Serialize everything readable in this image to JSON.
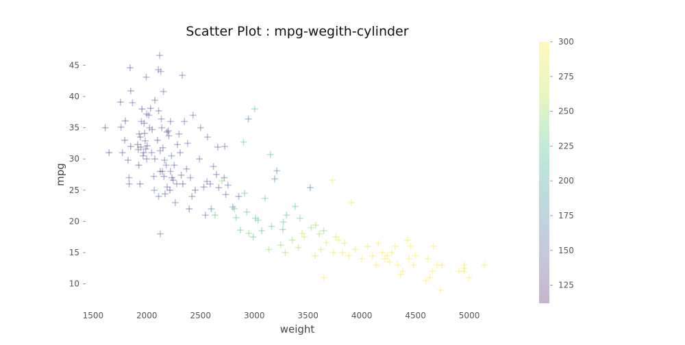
{
  "chart_data": {
    "type": "scatter",
    "title": "Scatter Plot : mpg-wegith-cylinder",
    "xlabel": "weight",
    "ylabel": "mpg",
    "xlim": [
      1450,
      5350
    ],
    "ylim": [
      7,
      48
    ],
    "x_ticks": [
      1500,
      2000,
      2500,
      3000,
      3500,
      4000,
      4500,
      5000
    ],
    "y_ticks": [
      10,
      15,
      20,
      25,
      30,
      35,
      40,
      45
    ],
    "marker": "+",
    "grid": false,
    "colorbar": {
      "range": [
        112,
        300
      ],
      "ticks": [
        125,
        150,
        175,
        200,
        225,
        250,
        275,
        300
      ],
      "colormap": "viridis",
      "placement": "right"
    },
    "points": [
      [
        1613,
        35,
        126
      ],
      [
        1649,
        31,
        130
      ],
      [
        1755,
        39.1,
        135
      ],
      [
        1760,
        35.1,
        137
      ],
      [
        1773,
        31,
        139
      ],
      [
        1795,
        33,
        130
      ],
      [
        1800,
        36.1,
        128
      ],
      [
        1825,
        29.8,
        144
      ],
      [
        1835,
        27,
        152
      ],
      [
        1836,
        26,
        140
      ],
      [
        1845,
        44.6,
        140
      ],
      [
        1850,
        32,
        133
      ],
      [
        1850,
        40.9,
        143
      ],
      [
        1867,
        39,
        148
      ],
      [
        1915,
        32.3,
        137
      ],
      [
        1920,
        31.5,
        142
      ],
      [
        1925,
        29,
        126
      ],
      [
        1930,
        34,
        135
      ],
      [
        1937,
        26,
        126
      ],
      [
        1940,
        33.5,
        145
      ],
      [
        1945,
        31.9,
        138
      ],
      [
        1950,
        36,
        152
      ],
      [
        1955,
        38,
        125
      ],
      [
        1965,
        30.5,
        150
      ],
      [
        1970,
        31,
        143
      ],
      [
        1975,
        35.7,
        132
      ],
      [
        1980,
        34.1,
        140
      ],
      [
        1985,
        32.9,
        155
      ],
      [
        1990,
        31.6,
        142
      ],
      [
        1995,
        43.1,
        147
      ],
      [
        2000,
        30,
        140
      ],
      [
        2000,
        37.2,
        138
      ],
      [
        2003,
        32.1,
        136
      ],
      [
        2019,
        37,
        150
      ],
      [
        2025,
        35,
        150
      ],
      [
        2035,
        38.1,
        130
      ],
      [
        2045,
        31,
        148
      ],
      [
        2050,
        34.7,
        138
      ],
      [
        2065,
        27.2,
        146
      ],
      [
        2070,
        25,
        158
      ],
      [
        2074,
        30,
        142
      ],
      [
        2075,
        39.4,
        140
      ],
      [
        2100,
        33,
        135
      ],
      [
        2108,
        44.3,
        148
      ],
      [
        2110,
        37.7,
        140
      ],
      [
        2110,
        24,
        150
      ],
      [
        2120,
        46.6,
        155
      ],
      [
        2124,
        31.3,
        150
      ],
      [
        2125,
        28,
        132
      ],
      [
        2125,
        18,
        155
      ],
      [
        2130,
        44,
        152
      ],
      [
        2135,
        36.4,
        155
      ],
      [
        2140,
        35,
        146
      ],
      [
        2145,
        28,
        143
      ],
      [
        2150,
        31.8,
        143
      ],
      [
        2155,
        40.8,
        150
      ],
      [
        2160,
        27.2,
        137
      ],
      [
        2165,
        29.8,
        158
      ],
      [
        2170,
        24.4,
        145
      ],
      [
        2180,
        29,
        148
      ],
      [
        2188,
        34.3,
        135
      ],
      [
        2190,
        25.5,
        150
      ],
      [
        2200,
        34.5,
        132
      ],
      [
        2205,
        33.7,
        138
      ],
      [
        2215,
        25,
        128
      ],
      [
        2220,
        36,
        148
      ],
      [
        2220,
        28,
        148
      ],
      [
        2230,
        30.5,
        150
      ],
      [
        2234,
        27,
        130
      ],
      [
        2245,
        26.6,
        140
      ],
      [
        2255,
        29,
        146
      ],
      [
        2265,
        23,
        152
      ],
      [
        2278,
        26,
        150
      ],
      [
        2285,
        32.3,
        148
      ],
      [
        2300,
        34,
        144
      ],
      [
        2310,
        31,
        145
      ],
      [
        2320,
        27.4,
        140
      ],
      [
        2330,
        43.4,
        148
      ],
      [
        2335,
        26,
        128
      ],
      [
        2350,
        36,
        145
      ],
      [
        2370,
        28.4,
        150
      ],
      [
        2380,
        32.5,
        155
      ],
      [
        2395,
        22,
        130
      ],
      [
        2405,
        27,
        152
      ],
      [
        2420,
        24,
        152
      ],
      [
        2430,
        37,
        150
      ],
      [
        2450,
        25,
        130
      ],
      [
        2490,
        30,
        145
      ],
      [
        2500,
        35,
        150
      ],
      [
        2530,
        25.5,
        150
      ],
      [
        2545,
        21,
        155
      ],
      [
        2560,
        26.4,
        155
      ],
      [
        2565,
        33.5,
        150
      ],
      [
        2590,
        26,
        148
      ],
      [
        2600,
        22,
        155
      ],
      [
        2620,
        28.8,
        150
      ],
      [
        2635,
        21,
        225
      ],
      [
        2648,
        27.5,
        148
      ],
      [
        2660,
        31.9,
        145
      ],
      [
        2670,
        25.4,
        145
      ],
      [
        2700,
        26.5,
        245
      ],
      [
        2720,
        27,
        150
      ],
      [
        2725,
        32,
        150
      ],
      [
        2735,
        24.3,
        150
      ],
      [
        2755,
        25.8,
        155
      ],
      [
        2800,
        22.3,
        160
      ],
      [
        2815,
        22,
        225
      ],
      [
        2830,
        20.6,
        225
      ],
      [
        2855,
        24,
        150
      ],
      [
        2870,
        18.6,
        230
      ],
      [
        2900,
        32.7,
        225
      ],
      [
        2910,
        24.5,
        225
      ],
      [
        2930,
        21.5,
        225
      ],
      [
        2945,
        36.4,
        165
      ],
      [
        2950,
        18.1,
        240
      ],
      [
        2990,
        17.5,
        225
      ],
      [
        3003,
        38,
        225
      ],
      [
        3012,
        20.5,
        225
      ],
      [
        3035,
        20.2,
        225
      ],
      [
        3070,
        18.5,
        225
      ],
      [
        3100,
        23.7,
        230
      ],
      [
        3135,
        15.5,
        250
      ],
      [
        3150,
        30.7,
        225
      ],
      [
        3160,
        19.2,
        225
      ],
      [
        3190,
        26.8,
        165
      ],
      [
        3210,
        28.1,
        165
      ],
      [
        3245,
        16.2,
        250
      ],
      [
        3265,
        18.7,
        225
      ],
      [
        3270,
        19.9,
        225
      ],
      [
        3288,
        15,
        250
      ],
      [
        3300,
        21,
        225
      ],
      [
        3353,
        17,
        250
      ],
      [
        3380,
        22.4,
        225
      ],
      [
        3410,
        15.8,
        255
      ],
      [
        3425,
        20.5,
        230
      ],
      [
        3445,
        18.1,
        270
      ],
      [
        3465,
        17.5,
        270
      ],
      [
        3520,
        25.4,
        165
      ],
      [
        3530,
        19,
        250
      ],
      [
        3565,
        14.5,
        270
      ],
      [
        3570,
        19.4,
        250
      ],
      [
        3605,
        18,
        255
      ],
      [
        3620,
        15.5,
        280
      ],
      [
        3645,
        18.5,
        240
      ],
      [
        3650,
        11,
        300
      ],
      [
        3670,
        16.6,
        280
      ],
      [
        3725,
        26.6,
        290
      ],
      [
        3735,
        15,
        290
      ],
      [
        3760,
        17.5,
        280
      ],
      [
        3785,
        17,
        290
      ],
      [
        3820,
        15,
        290
      ],
      [
        3840,
        16.5,
        285
      ],
      [
        3880,
        14.5,
        295
      ],
      [
        3900,
        23,
        290
      ],
      [
        3940,
        15.5,
        290
      ],
      [
        4000,
        14,
        300
      ],
      [
        4054,
        16,
        290
      ],
      [
        4100,
        14.5,
        300
      ],
      [
        4135,
        13,
        300
      ],
      [
        4154,
        16.5,
        300
      ],
      [
        4190,
        15,
        300
      ],
      [
        4215,
        14,
        300
      ],
      [
        4237,
        14.5,
        300
      ],
      [
        4257,
        13.5,
        300
      ],
      [
        4278,
        15,
        300
      ],
      [
        4310,
        16,
        300
      ],
      [
        4335,
        13,
        300
      ],
      [
        4360,
        11.5,
        300
      ],
      [
        4380,
        12,
        300
      ],
      [
        4425,
        17,
        300
      ],
      [
        4440,
        14,
        300
      ],
      [
        4456,
        16,
        300
      ],
      [
        4480,
        13,
        300
      ],
      [
        4499,
        14.5,
        300
      ],
      [
        4595,
        10.5,
        300
      ],
      [
        4615,
        14,
        300
      ],
      [
        4633,
        11,
        300
      ],
      [
        4655,
        12,
        300
      ],
      [
        4668,
        16,
        300
      ],
      [
        4700,
        13,
        300
      ],
      [
        4732,
        9,
        300
      ],
      [
        4746,
        13,
        300
      ],
      [
        4906,
        12,
        300
      ],
      [
        4951,
        12,
        300
      ],
      [
        4952,
        12.5,
        300
      ],
      [
        4955,
        13,
        300
      ],
      [
        4997,
        11,
        300
      ],
      [
        5140,
        13,
        300
      ]
    ]
  }
}
